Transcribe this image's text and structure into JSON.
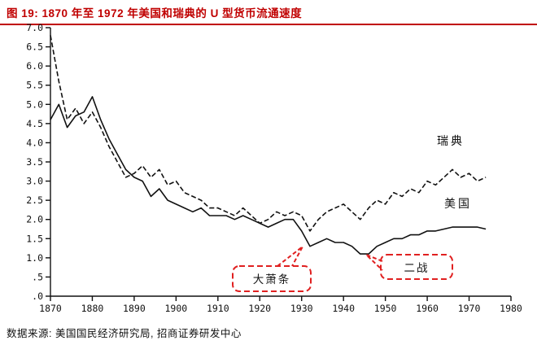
{
  "figure": {
    "title": "图 19: 1870 年至 1972 年美国和瑞典的 U 型货币流通速度",
    "source": "数据来源: 美国国民经济研究局, 招商证券研发中心",
    "accent_color": "#c00000",
    "annotation_color": "#e02020",
    "line_color": "#111111"
  },
  "chart_data": {
    "type": "line",
    "title": "1870 年至 1972 年美国和瑞典的 U 型货币流通速度",
    "xlabel": "",
    "ylabel": "",
    "xlim": [
      1870,
      1980
    ],
    "ylim": [
      0,
      7
    ],
    "x_tick_step": 10,
    "y_tick_step": 0.5,
    "grid": false,
    "legend_position": "inline-right",
    "x": [
      1870,
      1872,
      1874,
      1876,
      1878,
      1880,
      1882,
      1884,
      1886,
      1888,
      1890,
      1892,
      1894,
      1896,
      1898,
      1900,
      1902,
      1904,
      1906,
      1908,
      1910,
      1912,
      1914,
      1916,
      1918,
      1920,
      1922,
      1924,
      1926,
      1928,
      1930,
      1932,
      1934,
      1936,
      1938,
      1940,
      1942,
      1944,
      1946,
      1948,
      1950,
      1952,
      1954,
      1956,
      1958,
      1960,
      1962,
      1964,
      1966,
      1968,
      1970,
      1972,
      1974
    ],
    "series": [
      {
        "name": "瑞典",
        "key": "sweden",
        "line_style": "dashed",
        "values": [
          6.8,
          5.6,
          4.6,
          4.9,
          4.5,
          4.8,
          4.4,
          3.9,
          3.5,
          3.1,
          3.2,
          3.4,
          3.1,
          3.3,
          2.9,
          3.0,
          2.7,
          2.6,
          2.5,
          2.3,
          2.3,
          2.2,
          2.1,
          2.3,
          2.1,
          1.9,
          2.0,
          2.2,
          2.1,
          2.2,
          2.1,
          1.7,
          2.0,
          2.2,
          2.3,
          2.4,
          2.2,
          2.0,
          2.3,
          2.5,
          2.4,
          2.7,
          2.6,
          2.8,
          2.7,
          3.0,
          2.9,
          3.1,
          3.3,
          3.1,
          3.2,
          3.0,
          3.1
        ]
      },
      {
        "name": "美国",
        "key": "usa",
        "line_style": "solid",
        "values": [
          4.6,
          5.0,
          4.4,
          4.7,
          4.8,
          5.2,
          4.6,
          4.1,
          3.7,
          3.3,
          3.1,
          3.0,
          2.6,
          2.8,
          2.5,
          2.4,
          2.3,
          2.2,
          2.3,
          2.1,
          2.1,
          2.1,
          2.0,
          2.1,
          2.0,
          1.9,
          1.8,
          1.9,
          2.0,
          2.0,
          1.7,
          1.3,
          1.4,
          1.5,
          1.4,
          1.4,
          1.3,
          1.1,
          1.1,
          1.3,
          1.4,
          1.5,
          1.5,
          1.6,
          1.6,
          1.7,
          1.7,
          1.75,
          1.8,
          1.8,
          1.8,
          1.8,
          1.75
        ]
      }
    ],
    "annotations": [
      {
        "label": "大萧条",
        "x": 1930,
        "y": 1.3
      },
      {
        "label": "二战",
        "x": 1945,
        "y": 1.1
      }
    ]
  }
}
